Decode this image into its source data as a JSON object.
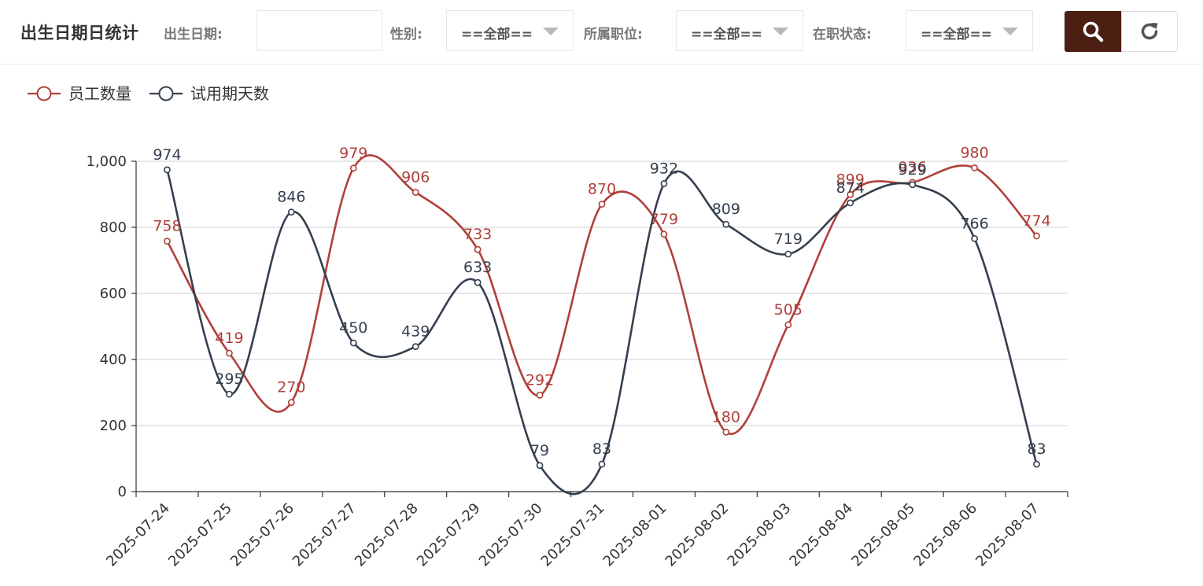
{
  "header": {
    "title": "出生日期日统计",
    "filters": {
      "birth_date_label": "出生日期:",
      "birth_date_value": "",
      "gender_label": "性别:",
      "gender_value": "==全部==",
      "position_label": "所属职位:",
      "position_value": "==全部==",
      "status_label": "在职状态:",
      "status_value": "==全部=="
    },
    "icons": {
      "search": "search-icon",
      "reset": "refresh-icon",
      "caret": "chevron-down-icon"
    },
    "colors": {
      "search_button": "#4a1f12"
    }
  },
  "chart_data": {
    "type": "line",
    "smooth": true,
    "categories": [
      "2025-07-24",
      "2025-07-25",
      "2025-07-26",
      "2025-07-27",
      "2025-07-28",
      "2025-07-29",
      "2025-07-30",
      "2025-07-31",
      "2025-08-01",
      "2025-08-02",
      "2025-08-03",
      "2025-08-04",
      "2025-08-05",
      "2025-08-06",
      "2025-08-07"
    ],
    "series": [
      {
        "name": "员工数量",
        "color": "#b0403a",
        "values": [
          758,
          419,
          270,
          979,
          906,
          733,
          292,
          870,
          779,
          180,
          505,
          899,
          936,
          980,
          774
        ]
      },
      {
        "name": "试用期天数",
        "color": "#34404f",
        "values": [
          974,
          295,
          846,
          450,
          439,
          633,
          79,
          83,
          932,
          809,
          719,
          874,
          929,
          766,
          83
        ]
      }
    ],
    "ylim": [
      0,
      1000
    ],
    "yticks": [
      0,
      200,
      400,
      600,
      800,
      1000
    ],
    "ytick_labels": [
      "0",
      "200",
      "400",
      "600",
      "800",
      "1,000"
    ],
    "grid": "horizontal",
    "legend_position": "top-left",
    "data_labels": true
  }
}
